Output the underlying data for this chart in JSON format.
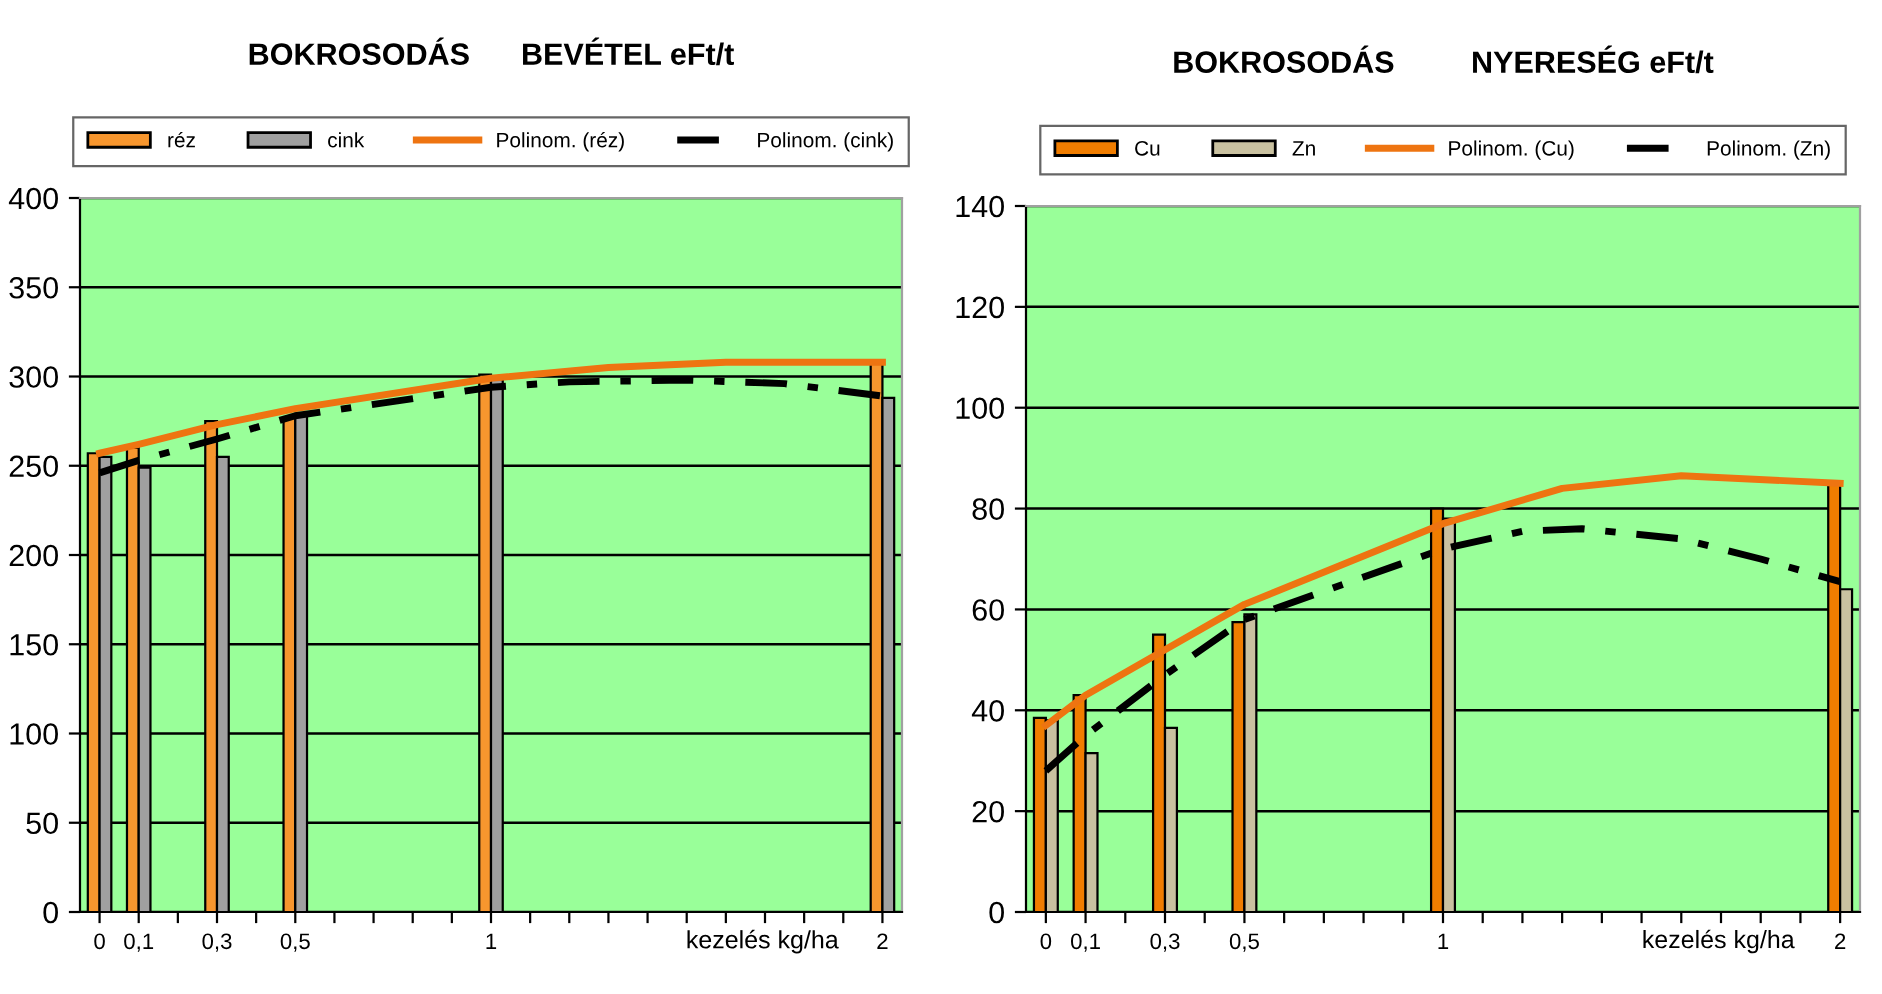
{
  "chart_data": [
    {
      "type": "bar",
      "title": "BOKROSODÁS      BEVÉTEL eFt/t",
      "xlabel": "kezelés kg/ha",
      "x": [
        0,
        0.1,
        0.3,
        0.5,
        1,
        2
      ],
      "series": [
        {
          "name": "réz",
          "color": "#f7962e",
          "values": [
            257,
            260,
            275,
            277,
            301,
            309
          ]
        },
        {
          "name": "cink",
          "color": "#a0a0a0",
          "values": [
            255,
            249,
            255,
            279,
            300,
            288
          ]
        },
        {
          "name": "Polinom. (réz)",
          "type": "line",
          "color": "#ee7411",
          "line_style": "solid",
          "x": [
            0,
            0.1,
            0.3,
            0.5,
            1,
            1.3,
            1.6,
            2
          ],
          "values": [
            257,
            262,
            273,
            282,
            299,
            305,
            308,
            308
          ]
        },
        {
          "name": "Polinom. (cink)",
          "type": "line",
          "color": "#000000",
          "line_style": "dashdot",
          "x": [
            0,
            0.1,
            0.3,
            0.5,
            1,
            1.2,
            1.5,
            1.75,
            2
          ],
          "values": [
            246,
            253,
            265,
            278,
            294,
            297,
            298,
            296,
            289
          ]
        }
      ],
      "xlim": [
        -0.05,
        2.05
      ],
      "xticks": [
        0,
        {
          "value": 0.1,
          "label": "0,1"
        },
        {
          "value": 0.2,
          "label": null
        },
        {
          "value": 0.3,
          "label": "0,3"
        },
        {
          "value": 0.4,
          "label": null
        },
        {
          "value": 0.5,
          "label": "0,5"
        },
        {
          "value": 0.6,
          "label": null
        },
        {
          "value": 0.7,
          "label": null
        },
        {
          "value": 0.8,
          "label": null
        },
        {
          "value": 0.9,
          "label": null
        },
        1,
        {
          "value": 1.1,
          "label": null
        },
        {
          "value": 1.2,
          "label": null
        },
        {
          "value": 1.3,
          "label": null
        },
        {
          "value": 1.4,
          "label": null
        },
        {
          "value": 1.5,
          "label": null
        },
        {
          "value": 1.6,
          "label": null
        },
        {
          "value": 1.7,
          "label": null
        },
        {
          "value": 1.8,
          "label": null
        },
        {
          "value": 1.9,
          "label": null
        },
        2
      ],
      "ylim": [
        0,
        400
      ],
      "yticks": [
        0,
        50,
        100,
        150,
        200,
        250,
        300,
        350,
        400
      ],
      "grid": "y",
      "legend": "top"
    },
    {
      "type": "bar",
      "title": "BOKROSODÁS         NYERESÉG eFt/t",
      "xlabel": "kezelés kg/ha",
      "x": [
        0,
        0.1,
        0.3,
        0.5,
        1,
        2
      ],
      "series": [
        {
          "name": "Cu",
          "color": "#f07d00",
          "values": [
            38.5,
            43,
            55,
            57.5,
            80,
            85
          ]
        },
        {
          "name": "Zn",
          "color": "#c9c1a0",
          "values": [
            38,
            31.5,
            36.5,
            59,
            78,
            64
          ]
        },
        {
          "name": "Polinom. (Cu)",
          "type": "line",
          "color": "#ee7411",
          "line_style": "solid",
          "x": [
            0,
            0.1,
            0.3,
            0.5,
            1,
            1.3,
            1.6,
            2
          ],
          "values": [
            37,
            43,
            52,
            61,
            77,
            84,
            86.5,
            85
          ]
        },
        {
          "name": "Polinom. (Zn)",
          "type": "line",
          "color": "#000000",
          "line_style": "dashdot",
          "x": [
            0,
            0.1,
            0.3,
            0.5,
            1,
            1.2,
            1.35,
            1.6,
            1.8,
            2
          ],
          "values": [
            28,
            35,
            47,
            58,
            72,
            75.5,
            76,
            74,
            70,
            65.5
          ]
        }
      ],
      "xlim": [
        -0.05,
        2.05
      ],
      "xticks": [
        0,
        {
          "value": 0.1,
          "label": "0,1"
        },
        {
          "value": 0.2,
          "label": null
        },
        {
          "value": 0.3,
          "label": "0,3"
        },
        {
          "value": 0.4,
          "label": null
        },
        {
          "value": 0.5,
          "label": "0,5"
        },
        {
          "value": 0.6,
          "label": null
        },
        {
          "value": 0.7,
          "label": null
        },
        {
          "value": 0.8,
          "label": null
        },
        {
          "value": 0.9,
          "label": null
        },
        1,
        {
          "value": 1.1,
          "label": null
        },
        {
          "value": 1.2,
          "label": null
        },
        {
          "value": 1.3,
          "label": null
        },
        {
          "value": 1.4,
          "label": null
        },
        {
          "value": 1.5,
          "label": null
        },
        {
          "value": 1.6,
          "label": null
        },
        {
          "value": 1.7,
          "label": null
        },
        {
          "value": 1.8,
          "label": null
        },
        {
          "value": 1.9,
          "label": null
        },
        2
      ],
      "ylim": [
        0,
        140
      ],
      "yticks": [
        0,
        20,
        40,
        60,
        80,
        100,
        120,
        140
      ],
      "grid": "y",
      "legend": "top"
    }
  ]
}
